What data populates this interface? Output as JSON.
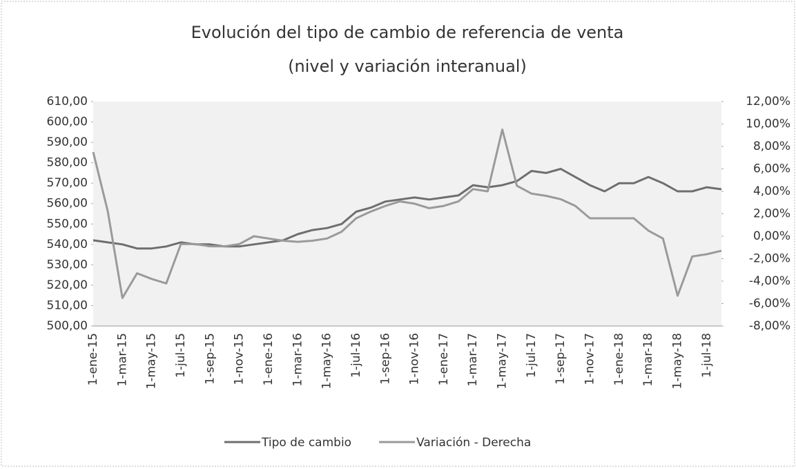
{
  "chart_data": {
    "type": "line",
    "title": "Evolución del tipo de cambio de referencia de venta",
    "subtitle": "(nivel y variación interanual)",
    "categories": [
      "1-ene-15",
      null,
      "1-mar-15",
      null,
      "1-may-15",
      null,
      "1-jul-15",
      null,
      "1-sep-15",
      null,
      "1-nov-15",
      null,
      "1-ene-16",
      null,
      "1-mar-16",
      null,
      "1-may-16",
      null,
      "1-jul-16",
      null,
      "1-sep-16",
      null,
      "1-nov-16",
      null,
      "1-ene-17",
      null,
      "1-mar-17",
      null,
      "1-may-17",
      null,
      "1-jul-17",
      null,
      "1-sep-17",
      null,
      "1-nov-17",
      null,
      "1-ene-18",
      null,
      "1-mar-18",
      null,
      "1-may-18",
      null,
      "1-jul-18",
      null
    ],
    "series": [
      {
        "name": "Tipo de cambio",
        "color": "#6e6e6e",
        "values": [
          542,
          541,
          540,
          538,
          538,
          539,
          541,
          540,
          540,
          539,
          539,
          540,
          541,
          542,
          545,
          547,
          548,
          550,
          556,
          558,
          561,
          562,
          563,
          562,
          563,
          564,
          569,
          568,
          569,
          571,
          576,
          575,
          577,
          573,
          569,
          566,
          570,
          570,
          573,
          570,
          566,
          566,
          568,
          567
        ]
      },
      {
        "name": "Variación - Derecha",
        "color": "#9a9a9a",
        "axis": "y2",
        "values": [
          7.5,
          2.2,
          -5.5,
          -3.3,
          -3.8,
          -4.2,
          -0.7,
          -0.7,
          -0.9,
          -0.9,
          -0.7,
          0,
          -0.2,
          -0.4,
          -0.5,
          -0.4,
          -0.2,
          0.4,
          1.6,
          2.2,
          2.7,
          3.1,
          2.9,
          2.5,
          2.7,
          3.1,
          4.2,
          4.0,
          9.5,
          4.5,
          3.8,
          3.6,
          3.3,
          2.7,
          1.6,
          1.6,
          1.6,
          1.6,
          0.5,
          -0.2,
          -5.3,
          -1.8,
          -1.6,
          -1.3
        ]
      }
    ],
    "ylim": [
      500,
      610
    ],
    "yticks": [
      {
        "value": 500,
        "label": "500,00"
      },
      {
        "value": 510,
        "label": "510,00"
      },
      {
        "value": 520,
        "label": "520,00"
      },
      {
        "value": 530,
        "label": "530,00"
      },
      {
        "value": 540,
        "label": "540,00"
      },
      {
        "value": 550,
        "label": "550,00"
      },
      {
        "value": 560,
        "label": "560,00"
      },
      {
        "value": 570,
        "label": "570,00"
      },
      {
        "value": 580,
        "label": "580,00"
      },
      {
        "value": 590,
        "label": "590,00"
      },
      {
        "value": 600,
        "label": "600,00"
      },
      {
        "value": 610,
        "label": "610,00"
      }
    ],
    "y2lim": [
      -8,
      12
    ],
    "y2ticks": [
      {
        "value": -8,
        "label": "-8,00%"
      },
      {
        "value": -6,
        "label": "-6,00%"
      },
      {
        "value": -4,
        "label": "-4,00%"
      },
      {
        "value": -2,
        "label": "-2,00%"
      },
      {
        "value": 0,
        "label": "0,00%"
      },
      {
        "value": 2,
        "label": "2,00%"
      },
      {
        "value": 4,
        "label": "4,00%"
      },
      {
        "value": 6,
        "label": "6,00%"
      },
      {
        "value": 8,
        "label": "8,00%"
      },
      {
        "value": 10,
        "label": "10,00%"
      },
      {
        "value": 12,
        "label": "12,00%"
      }
    ],
    "legend": "bottom"
  }
}
